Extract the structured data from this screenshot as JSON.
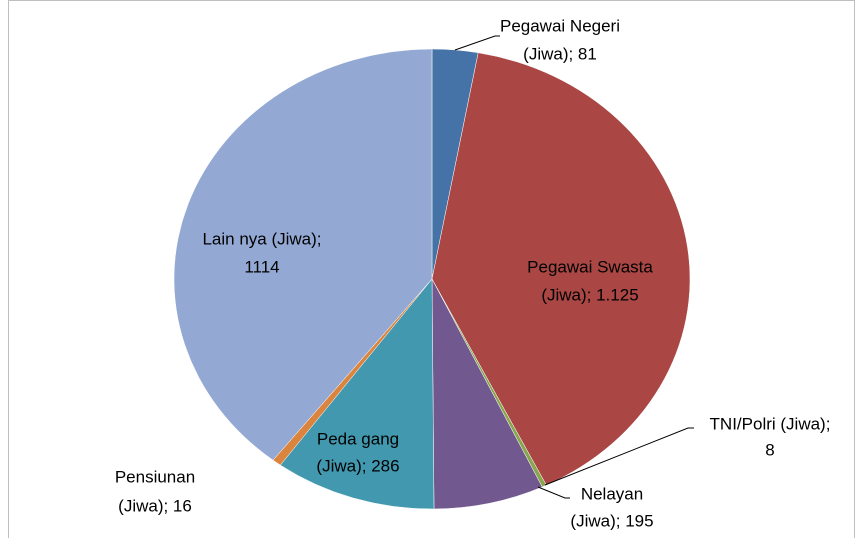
{
  "chart_data": {
    "type": "pie",
    "labels": [
      [
        "Pegawai Negeri",
        "(Jiwa); 81"
      ],
      [
        "Pegawai Swasta",
        "(Jiwa); 1.125"
      ],
      [
        "TNI/Polri (Jiwa);",
        "8"
      ],
      [
        "Nelayan",
        "(Jiwa); 195"
      ],
      [
        "Peda gang",
        "(Jiwa); 286"
      ],
      [
        "Pensiunan",
        "(Jiwa); 16"
      ],
      [
        "Lain nya (Jiwa);",
        "1114"
      ]
    ],
    "values": [
      81,
      1125,
      8,
      195,
      286,
      16,
      1114
    ],
    "colors": [
      "#4572a7",
      "#aa4643",
      "#89a54e",
      "#71588f",
      "#4198af",
      "#db843d",
      "#93a9d4"
    ]
  }
}
